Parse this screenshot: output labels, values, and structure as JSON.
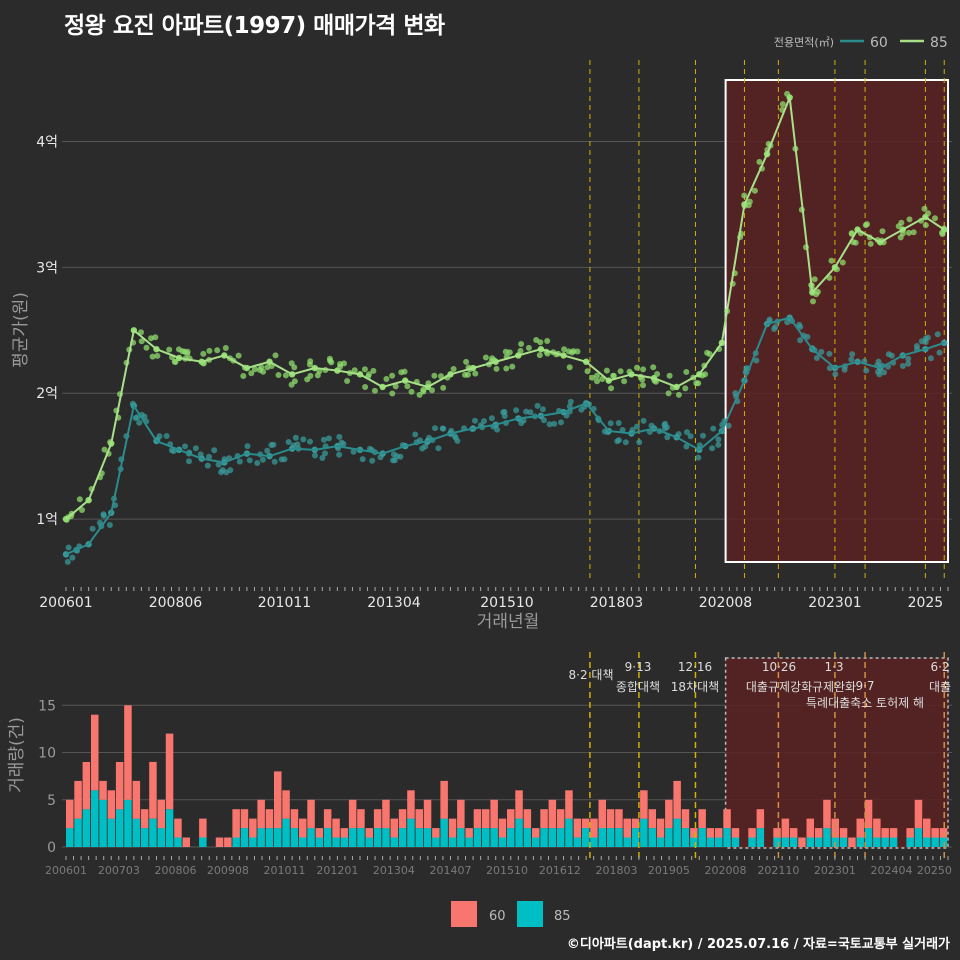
{
  "title": "정왕 요진 아파트(1997) 매매가격 변화",
  "footer": "©디아파트(dapt.kr) / 2025.07.16 / 자료=국토교통부 실거래가",
  "colors": {
    "bg": "#2b2b2b",
    "grid": "#555555",
    "s60_line": "#2a8c8c",
    "s60_point": "#3a9a9a",
    "s85_line": "#a8e08a",
    "s85_point": "#8fdc6e",
    "bar60": "#f8766d",
    "bar85": "#00bfc4",
    "policy": "#d4b000",
    "highlight_fill": "#5a2222",
    "highlight_border": "#ffffff"
  },
  "chart_data": [
    {
      "type": "line",
      "xlabel": "거래년월",
      "ylabel": "평균가(원)",
      "ylim": [
        0.5,
        4.6
      ],
      "y_ticks": [
        {
          "v": 1,
          "label": "1억"
        },
        {
          "v": 2,
          "label": "2억"
        },
        {
          "v": 3,
          "label": "3억"
        },
        {
          "v": 4,
          "label": "4억"
        }
      ],
      "x_ticks": [
        "200601",
        "200806",
        "201011",
        "201304",
        "201510",
        "201803",
        "202008",
        "202301",
        "2025"
      ],
      "legend": {
        "title": "전용면적(㎡)",
        "items": [
          "60",
          "85"
        ],
        "position": "top-right"
      },
      "series": [
        {
          "name": "60",
          "x": [
            "2006-01",
            "2006-07",
            "2007-01",
            "2007-07",
            "2008-01",
            "2008-07",
            "2009-01",
            "2009-07",
            "2010-01",
            "2010-07",
            "2011-01",
            "2011-07",
            "2012-01",
            "2012-07",
            "2013-01",
            "2013-07",
            "2014-01",
            "2014-07",
            "2015-01",
            "2015-07",
            "2016-01",
            "2016-07",
            "2017-01",
            "2017-07",
            "2018-01",
            "2018-07",
            "2019-01",
            "2019-07",
            "2020-01",
            "2020-07",
            "2021-01",
            "2021-07",
            "2022-01",
            "2022-07",
            "2023-01",
            "2023-07",
            "2024-01",
            "2024-07",
            "2025-01",
            "2025-06"
          ],
          "values": [
            0.72,
            0.8,
            1.05,
            1.9,
            1.62,
            1.55,
            1.48,
            1.45,
            1.52,
            1.5,
            1.56,
            1.55,
            1.58,
            1.55,
            1.52,
            1.58,
            1.62,
            1.68,
            1.72,
            1.75,
            1.8,
            1.82,
            1.85,
            1.92,
            1.7,
            1.68,
            1.72,
            1.65,
            1.55,
            1.7,
            2.1,
            2.55,
            2.6,
            2.35,
            2.2,
            2.25,
            2.2,
            2.3,
            2.35,
            2.4
          ]
        },
        {
          "name": "85",
          "x": [
            "2006-01",
            "2006-07",
            "2007-01",
            "2007-07",
            "2008-01",
            "2008-07",
            "2009-01",
            "2009-07",
            "2010-01",
            "2010-07",
            "2011-01",
            "2011-07",
            "2012-01",
            "2012-07",
            "2013-01",
            "2013-07",
            "2014-01",
            "2014-07",
            "2015-01",
            "2015-07",
            "2016-01",
            "2016-07",
            "2017-01",
            "2017-07",
            "2018-01",
            "2018-07",
            "2019-01",
            "2019-07",
            "2020-01",
            "2020-07",
            "2021-01",
            "2021-07",
            "2022-01",
            "2022-07",
            "2023-01",
            "2023-07",
            "2024-01",
            "2024-07",
            "2025-01",
            "2025-06"
          ],
          "values": [
            1.0,
            1.15,
            1.6,
            2.5,
            2.35,
            2.28,
            2.25,
            2.3,
            2.2,
            2.25,
            2.15,
            2.2,
            2.18,
            2.15,
            2.05,
            2.1,
            2.05,
            2.15,
            2.2,
            2.25,
            2.3,
            2.35,
            2.3,
            2.25,
            2.1,
            2.15,
            2.12,
            2.05,
            2.15,
            2.4,
            3.5,
            3.9,
            4.35,
            2.8,
            3.0,
            3.3,
            3.2,
            3.3,
            3.4,
            3.3
          ]
        }
      ]
    },
    {
      "type": "bar",
      "xlabel": "",
      "ylabel": "거래량(건)",
      "ylim": [
        0,
        20
      ],
      "y_ticks": [
        0,
        5,
        10,
        15
      ],
      "x_ticks": [
        "200601",
        "200703",
        "200806",
        "200908",
        "201011",
        "201201",
        "201304",
        "201407",
        "201510",
        "201612",
        "201803",
        "201905",
        "202008",
        "202110",
        "202301",
        "202404",
        "20250"
      ],
      "legend": {
        "items": [
          "60",
          "85"
        ],
        "position": "bottom"
      },
      "series": [
        {
          "name": "60",
          "values": [
            3,
            4,
            5,
            8,
            2,
            3,
            5,
            10,
            4,
            2,
            6,
            3,
            8,
            2,
            1,
            0,
            2,
            0,
            1,
            1,
            3,
            2,
            2,
            3,
            2,
            6,
            3,
            2,
            2,
            3,
            1,
            2,
            2,
            1,
            3,
            2,
            1,
            2,
            3,
            2,
            2,
            3,
            2,
            3,
            1,
            4,
            2,
            3,
            1,
            2,
            2,
            3,
            2,
            2,
            3,
            2,
            1,
            2,
            3,
            2,
            3,
            2,
            1,
            2,
            3,
            2,
            2,
            2,
            1,
            3,
            2,
            2,
            3,
            4,
            2,
            1,
            2,
            1,
            1,
            2,
            1,
            0,
            1,
            2,
            0,
            1,
            2,
            1,
            1,
            2,
            1,
            3,
            2,
            1,
            1,
            2,
            3,
            2,
            1,
            1,
            0,
            1,
            3,
            2,
            1,
            1
          ]
        },
        {
          "name": "85",
          "values": [
            2,
            3,
            4,
            6,
            5,
            3,
            4,
            5,
            3,
            2,
            3,
            2,
            4,
            1,
            0,
            0,
            1,
            0,
            0,
            0,
            1,
            2,
            1,
            2,
            2,
            2,
            3,
            2,
            1,
            2,
            1,
            2,
            1,
            1,
            2,
            2,
            1,
            2,
            2,
            1,
            2,
            3,
            2,
            2,
            1,
            3,
            1,
            2,
            1,
            2,
            2,
            2,
            1,
            2,
            3,
            2,
            1,
            2,
            2,
            2,
            3,
            1,
            2,
            1,
            2,
            2,
            2,
            1,
            2,
            3,
            2,
            1,
            2,
            3,
            2,
            1,
            2,
            1,
            1,
            2,
            1,
            0,
            1,
            2,
            0,
            1,
            1,
            1,
            0,
            1,
            1,
            2,
            1,
            1,
            0,
            1,
            2,
            1,
            1,
            1,
            0,
            1,
            2,
            1,
            1,
            1
          ]
        }
      ]
    }
  ],
  "policies": [
    {
      "label": "8·2 대책",
      "label2": ""
    },
    {
      "label": "9·13",
      "label2": "종합대책"
    },
    {
      "label": "12·16",
      "label2": "18차대책"
    },
    {
      "label": "10·26",
      "label2": "대출규제강화"
    },
    {
      "label": "1·3",
      "label2": "규제완화"
    },
    {
      "label": "9·7",
      "label2": "특례대출축소 토허제 해"
    },
    {
      "label": "6·2",
      "label2": "대출"
    }
  ]
}
